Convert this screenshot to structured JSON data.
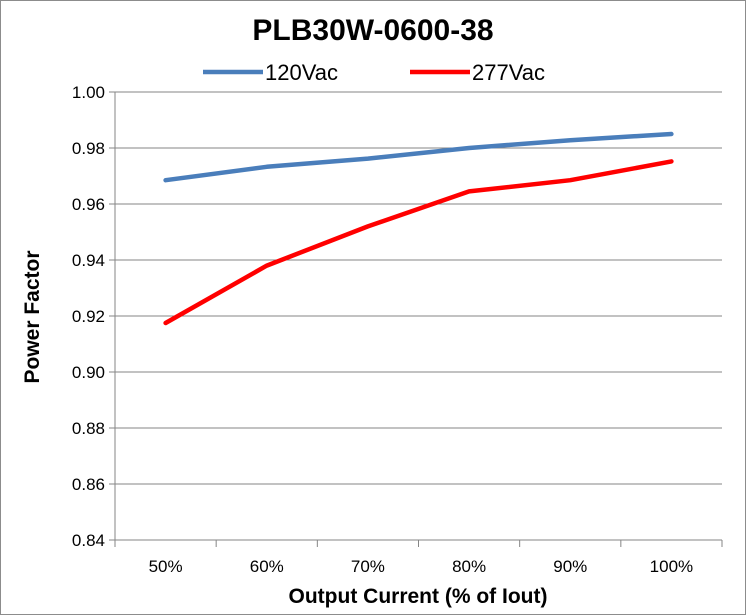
{
  "chart_data": {
    "type": "line",
    "title": "PLB30W-0600-38",
    "xlabel": "Output Current (% of Iout)",
    "ylabel": "Power Factor",
    "categories": [
      "50%",
      "60%",
      "70%",
      "80%",
      "90%",
      "100%"
    ],
    "ylim": [
      0.84,
      1.0
    ],
    "yticks": [
      "0.84",
      "0.86",
      "0.88",
      "0.90",
      "0.92",
      "0.94",
      "0.96",
      "0.98",
      "1.00"
    ],
    "grid": true,
    "legend_position": "top",
    "series": [
      {
        "name": "120Vac",
        "color": "#4a7ebb",
        "values": [
          0.9685,
          0.9733,
          0.9762,
          0.98,
          0.9828,
          0.985
        ]
      },
      {
        "name": "277Vac",
        "color": "#ff0000",
        "values": [
          0.9175,
          0.938,
          0.952,
          0.9645,
          0.9685,
          0.9752
        ]
      }
    ]
  }
}
